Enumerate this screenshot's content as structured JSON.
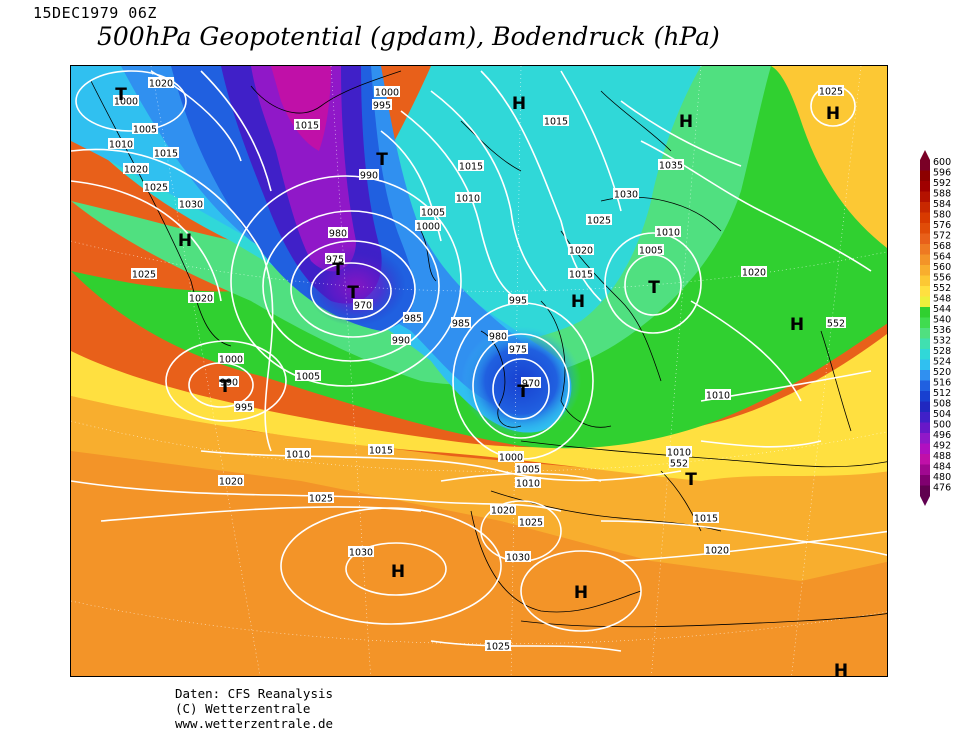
{
  "header": {
    "datetime": "15DEC1979 06Z",
    "title": "500hPa Geopotential (gpdam), Bodendruck (hPa)"
  },
  "credits": {
    "line1": "Daten: CFS Reanalysis",
    "line2": "(C) Wetterzentrale",
    "line3": "www.wetterzentrale.de"
  },
  "legend": {
    "values": [
      "600",
      "596",
      "592",
      "588",
      "584",
      "580",
      "576",
      "572",
      "568",
      "564",
      "560",
      "556",
      "552",
      "548",
      "544",
      "540",
      "536",
      "532",
      "528",
      "524",
      "520",
      "516",
      "512",
      "508",
      "504",
      "500",
      "496",
      "492",
      "488",
      "484",
      "480",
      "476"
    ],
    "colors": [
      "#7a0026",
      "#8d0000",
      "#a00000",
      "#b41200",
      "#c82800",
      "#d83a00",
      "#e04c08",
      "#e8601a",
      "#ee7a22",
      "#f39428",
      "#f8ae2e",
      "#fcc834",
      "#ffe040",
      "#ecf03c",
      "#30d030",
      "#40dc50",
      "#50e080",
      "#40e0b0",
      "#30d8d8",
      "#30c0f0",
      "#3090f0",
      "#2060e0",
      "#1840d0",
      "#2028c0",
      "#4020c8",
      "#6818c8",
      "#9018c8",
      "#b010c0",
      "#c010a8",
      "#a00890",
      "#800070",
      "#600050"
    ]
  },
  "map": {
    "contour_labels": [
      {
        "t": "1020",
        "x": 1160,
        "y": 82
      },
      {
        "t": "1000",
        "x": 1125,
        "y": 100
      },
      {
        "t": "1005",
        "x": 1144,
        "y": 128
      },
      {
        "t": "1010",
        "x": 1120,
        "y": 143
      },
      {
        "t": "1015",
        "x": 1165,
        "y": 152
      },
      {
        "t": "1020",
        "x": 1135,
        "y": 168
      },
      {
        "t": "1025",
        "x": 1155,
        "y": 186
      },
      {
        "t": "1030",
        "x": 1190,
        "y": 203
      },
      {
        "t": "1025",
        "x": 1143,
        "y": 273
      },
      {
        "t": "1020",
        "x": 1200,
        "y": 297
      },
      {
        "t": "1000",
        "x": 1230,
        "y": 358
      },
      {
        "t": "990",
        "x": 1228,
        "y": 381
      },
      {
        "t": "995",
        "x": 1243,
        "y": 406
      },
      {
        "t": "1005",
        "x": 1307,
        "y": 375
      },
      {
        "t": "1010",
        "x": 1297,
        "y": 453
      },
      {
        "t": "1015",
        "x": 1380,
        "y": 449
      },
      {
        "t": "1020",
        "x": 1230,
        "y": 480
      },
      {
        "t": "1025",
        "x": 1320,
        "y": 497
      },
      {
        "t": "1030",
        "x": 1360,
        "y": 551
      },
      {
        "t": "1015",
        "x": 1306,
        "y": 124
      },
      {
        "t": "1000",
        "x": 1386,
        "y": 91
      },
      {
        "t": "995",
        "x": 1381,
        "y": 104
      },
      {
        "t": "990",
        "x": 1368,
        "y": 174
      },
      {
        "t": "980",
        "x": 1337,
        "y": 232
      },
      {
        "t": "975",
        "x": 1334,
        "y": 258
      },
      {
        "t": "970",
        "x": 1362,
        "y": 304
      },
      {
        "t": "985",
        "x": 1412,
        "y": 317
      },
      {
        "t": "990",
        "x": 1400,
        "y": 339
      },
      {
        "t": "985",
        "x": 1460,
        "y": 322
      },
      {
        "t": "995",
        "x": 1517,
        "y": 299
      },
      {
        "t": "980",
        "x": 1497,
        "y": 335
      },
      {
        "t": "975",
        "x": 1517,
        "y": 348
      },
      {
        "t": "970",
        "x": 1530,
        "y": 382
      },
      {
        "t": "1000",
        "x": 1427,
        "y": 225
      },
      {
        "t": "1005",
        "x": 1432,
        "y": 211
      },
      {
        "t": "1010",
        "x": 1467,
        "y": 197
      },
      {
        "t": "1015",
        "x": 1470,
        "y": 165
      },
      {
        "t": "1015",
        "x": 1555,
        "y": 120
      },
      {
        "t": "1035",
        "x": 1670,
        "y": 164
      },
      {
        "t": "1030",
        "x": 1625,
        "y": 193
      },
      {
        "t": "1025",
        "x": 1598,
        "y": 219
      },
      {
        "t": "1020",
        "x": 1580,
        "y": 249
      },
      {
        "t": "1015",
        "x": 1580,
        "y": 273
      },
      {
        "t": "1005",
        "x": 1650,
        "y": 249
      },
      {
        "t": "1010",
        "x": 1667,
        "y": 231
      },
      {
        "t": "1020",
        "x": 1753,
        "y": 271
      },
      {
        "t": "1010",
        "x": 1717,
        "y": 394
      },
      {
        "t": "1025",
        "x": 1830,
        "y": 90
      },
      {
        "t": "1000",
        "x": 1510,
        "y": 456
      },
      {
        "t": "1005",
        "x": 1527,
        "y": 468
      },
      {
        "t": "1010",
        "x": 1527,
        "y": 482
      },
      {
        "t": "1010",
        "x": 1678,
        "y": 451
      },
      {
        "t": "1020",
        "x": 1502,
        "y": 509
      },
      {
        "t": "1025",
        "x": 1530,
        "y": 521
      },
      {
        "t": "1030",
        "x": 1517,
        "y": 556
      },
      {
        "t": "1015",
        "x": 1705,
        "y": 517
      },
      {
        "t": "1020",
        "x": 1716,
        "y": 549
      },
      {
        "t": "1025",
        "x": 1497,
        "y": 645
      },
      {
        "t": "552",
        "x": 1678,
        "y": 462
      },
      {
        "t": "552",
        "x": 1835,
        "y": 322
      }
    ],
    "pressure_centers": [
      {
        "t": "T",
        "x": 1120,
        "y": 93
      },
      {
        "t": "H",
        "x": 518,
        "y": 102
      },
      {
        "t": "H",
        "x": 685,
        "y": 120
      },
      {
        "t": "H",
        "x": 832,
        "y": 112
      },
      {
        "t": "T",
        "x": 381,
        "y": 158
      },
      {
        "t": "H",
        "x": 184,
        "y": 239
      },
      {
        "t": "T",
        "x": 337,
        "y": 268
      },
      {
        "t": "T",
        "x": 352,
        "y": 291
      },
      {
        "t": "T",
        "x": 653,
        "y": 286
      },
      {
        "t": "H",
        "x": 577,
        "y": 300
      },
      {
        "t": "H",
        "x": 796,
        "y": 323
      },
      {
        "t": "T",
        "x": 224,
        "y": 385
      },
      {
        "t": "T",
        "x": 522,
        "y": 390
      },
      {
        "t": "T",
        "x": 690,
        "y": 478
      },
      {
        "t": "H",
        "x": 397,
        "y": 570
      },
      {
        "t": "H",
        "x": 580,
        "y": 591
      },
      {
        "t": "H",
        "x": 840,
        "y": 669
      }
    ]
  }
}
